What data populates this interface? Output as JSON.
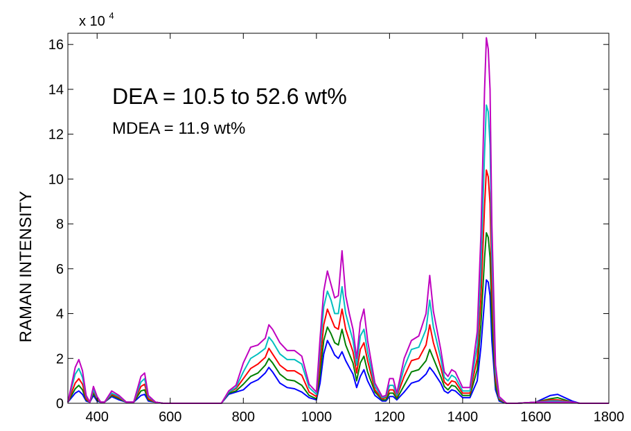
{
  "chart_data": {
    "type": "line",
    "title": "",
    "xlabel": "",
    "ylabel": "RAMAN INTENSITY",
    "y_multiplier_label": "x 10",
    "y_multiplier_exponent": "4",
    "xlim": [
      320,
      1800
    ],
    "ylim": [
      0,
      16.5
    ],
    "xticks": [
      400,
      600,
      800,
      1000,
      1200,
      1400,
      1600,
      1800
    ],
    "yticks": [
      0,
      2,
      4,
      6,
      8,
      10,
      12,
      14,
      16
    ],
    "grid": false,
    "legend": "none",
    "annotations": [
      "DEA = 10.5 to 52.6 wt%",
      "MDEA = 11.9 wt%"
    ],
    "x": [
      320,
      340,
      350,
      360,
      370,
      380,
      390,
      400,
      410,
      420,
      440,
      460,
      480,
      500,
      520,
      530,
      540,
      560,
      580,
      600,
      650,
      700,
      740,
      760,
      780,
      800,
      820,
      840,
      860,
      870,
      880,
      900,
      920,
      940,
      960,
      980,
      1000,
      1010,
      1020,
      1030,
      1040,
      1050,
      1060,
      1070,
      1080,
      1090,
      1100,
      1110,
      1120,
      1130,
      1140,
      1160,
      1180,
      1190,
      1200,
      1210,
      1220,
      1240,
      1260,
      1280,
      1300,
      1310,
      1320,
      1340,
      1350,
      1360,
      1370,
      1380,
      1400,
      1420,
      1440,
      1450,
      1460,
      1465,
      1470,
      1475,
      1480,
      1490,
      1500,
      1520,
      1550,
      1600,
      1640,
      1660,
      1700,
      1720,
      1750,
      1800
    ],
    "series": [
      {
        "color": "#0000ff",
        "values": [
          0.05,
          0.45,
          0.55,
          0.4,
          0.1,
          0.05,
          0.35,
          0.1,
          0.05,
          0.05,
          0.3,
          0.15,
          0.05,
          0.05,
          0.35,
          0.4,
          0.1,
          0.05,
          0,
          0,
          0,
          0,
          0,
          0.4,
          0.5,
          0.6,
          0.9,
          1.05,
          1.35,
          1.6,
          1.4,
          0.9,
          0.7,
          0.65,
          0.5,
          0.25,
          0.15,
          0.9,
          2.2,
          2.8,
          2.5,
          2.15,
          2.0,
          2.3,
          1.9,
          1.6,
          1.3,
          0.7,
          1.2,
          1.5,
          1.0,
          0.35,
          0.1,
          0.1,
          0.3,
          0.3,
          0.15,
          0.5,
          0.9,
          1.0,
          1.3,
          1.6,
          1.4,
          0.9,
          0.55,
          0.45,
          0.6,
          0.55,
          0.25,
          0.25,
          1.0,
          2.5,
          4.6,
          5.5,
          5.4,
          4.8,
          2.8,
          0.6,
          0.1,
          0,
          0,
          0.05,
          0.35,
          0.4,
          0.1,
          0,
          0,
          0
        ]
      },
      {
        "color": "#007f00",
        "values": [
          0.05,
          0.65,
          0.8,
          0.6,
          0.15,
          0.05,
          0.45,
          0.15,
          0.05,
          0.05,
          0.35,
          0.2,
          0.05,
          0.05,
          0.55,
          0.6,
          0.15,
          0.05,
          0,
          0,
          0,
          0,
          0,
          0.45,
          0.55,
          0.85,
          1.2,
          1.35,
          1.7,
          2.0,
          1.8,
          1.3,
          1.05,
          1.0,
          0.8,
          0.35,
          0.2,
          1.3,
          2.8,
          3.4,
          3.1,
          2.7,
          2.6,
          3.3,
          2.6,
          2.2,
          1.8,
          1.0,
          1.8,
          2.1,
          1.4,
          0.5,
          0.15,
          0.15,
          0.45,
          0.45,
          0.2,
          0.8,
          1.4,
          1.5,
          1.9,
          2.4,
          2.0,
          1.2,
          0.75,
          0.6,
          0.8,
          0.75,
          0.35,
          0.35,
          1.5,
          3.5,
          6.5,
          7.6,
          7.4,
          6.5,
          3.8,
          0.8,
          0.15,
          0,
          0,
          0.05,
          0.2,
          0.25,
          0.05,
          0,
          0,
          0
        ]
      },
      {
        "color": "#ff0000",
        "values": [
          0.05,
          0.9,
          1.1,
          0.85,
          0.2,
          0.05,
          0.55,
          0.2,
          0.05,
          0.05,
          0.4,
          0.25,
          0.05,
          0.05,
          0.75,
          0.85,
          0.2,
          0.05,
          0,
          0,
          0,
          0,
          0,
          0.5,
          0.65,
          1.1,
          1.55,
          1.75,
          2.05,
          2.45,
          2.2,
          1.7,
          1.45,
          1.45,
          1.25,
          0.5,
          0.3,
          1.8,
          3.5,
          4.2,
          3.8,
          3.4,
          3.3,
          4.2,
          3.3,
          2.8,
          2.3,
          1.35,
          2.4,
          2.7,
          1.9,
          0.6,
          0.2,
          0.25,
          0.6,
          0.6,
          0.3,
          1.2,
          1.9,
          2.0,
          2.6,
          3.5,
          2.7,
          1.6,
          0.95,
          0.8,
          1.0,
          0.95,
          0.45,
          0.45,
          2.0,
          4.7,
          8.8,
          10.4,
          10.1,
          8.9,
          5.1,
          1.1,
          0.2,
          0,
          0,
          0.05,
          0.15,
          0.15,
          0.05,
          0,
          0,
          0
        ]
      },
      {
        "color": "#00bfbf",
        "values": [
          0.05,
          1.3,
          1.55,
          1.15,
          0.3,
          0.05,
          0.6,
          0.25,
          0.05,
          0.05,
          0.45,
          0.3,
          0.05,
          0.05,
          0.95,
          1.1,
          0.3,
          0.05,
          0,
          0,
          0,
          0,
          0,
          0.5,
          0.7,
          1.4,
          2.0,
          2.2,
          2.45,
          2.95,
          2.75,
          2.2,
          1.95,
          1.95,
          1.75,
          0.7,
          0.4,
          2.4,
          4.3,
          5.0,
          4.6,
          4.0,
          4.0,
          5.2,
          4.0,
          3.4,
          2.8,
          1.7,
          3.0,
          3.3,
          2.3,
          0.75,
          0.25,
          0.3,
          0.8,
          0.8,
          0.35,
          1.6,
          2.4,
          2.5,
          3.3,
          4.6,
          3.4,
          2.0,
          1.15,
          1.0,
          1.25,
          1.15,
          0.55,
          0.55,
          2.6,
          6.0,
          11.2,
          13.3,
          13.0,
          11.5,
          6.5,
          1.4,
          0.25,
          0,
          0,
          0.05,
          0.1,
          0.1,
          0.05,
          0,
          0,
          0
        ]
      },
      {
        "color": "#bf00bf",
        "values": [
          0.05,
          1.6,
          1.95,
          1.45,
          0.35,
          0.05,
          0.75,
          0.3,
          0.05,
          0.05,
          0.55,
          0.35,
          0.05,
          0.05,
          1.2,
          1.35,
          0.35,
          0.05,
          0,
          0,
          0,
          0,
          0,
          0.55,
          0.8,
          1.8,
          2.5,
          2.6,
          2.9,
          3.5,
          3.3,
          2.7,
          2.35,
          2.35,
          2.1,
          0.85,
          0.5,
          2.9,
          5.0,
          5.9,
          5.3,
          4.7,
          4.8,
          6.8,
          4.8,
          4.0,
          3.3,
          2.0,
          3.6,
          4.2,
          2.8,
          0.9,
          0.3,
          0.35,
          1.1,
          1.1,
          0.45,
          2.0,
          2.8,
          3.0,
          4.0,
          5.7,
          4.1,
          2.4,
          1.4,
          1.2,
          1.5,
          1.4,
          0.7,
          0.7,
          3.2,
          7.5,
          14.0,
          16.3,
          15.8,
          14.0,
          8.0,
          1.7,
          0.3,
          0,
          0,
          0.05,
          0.05,
          0.05,
          0.05,
          0,
          0,
          0
        ]
      }
    ]
  }
}
